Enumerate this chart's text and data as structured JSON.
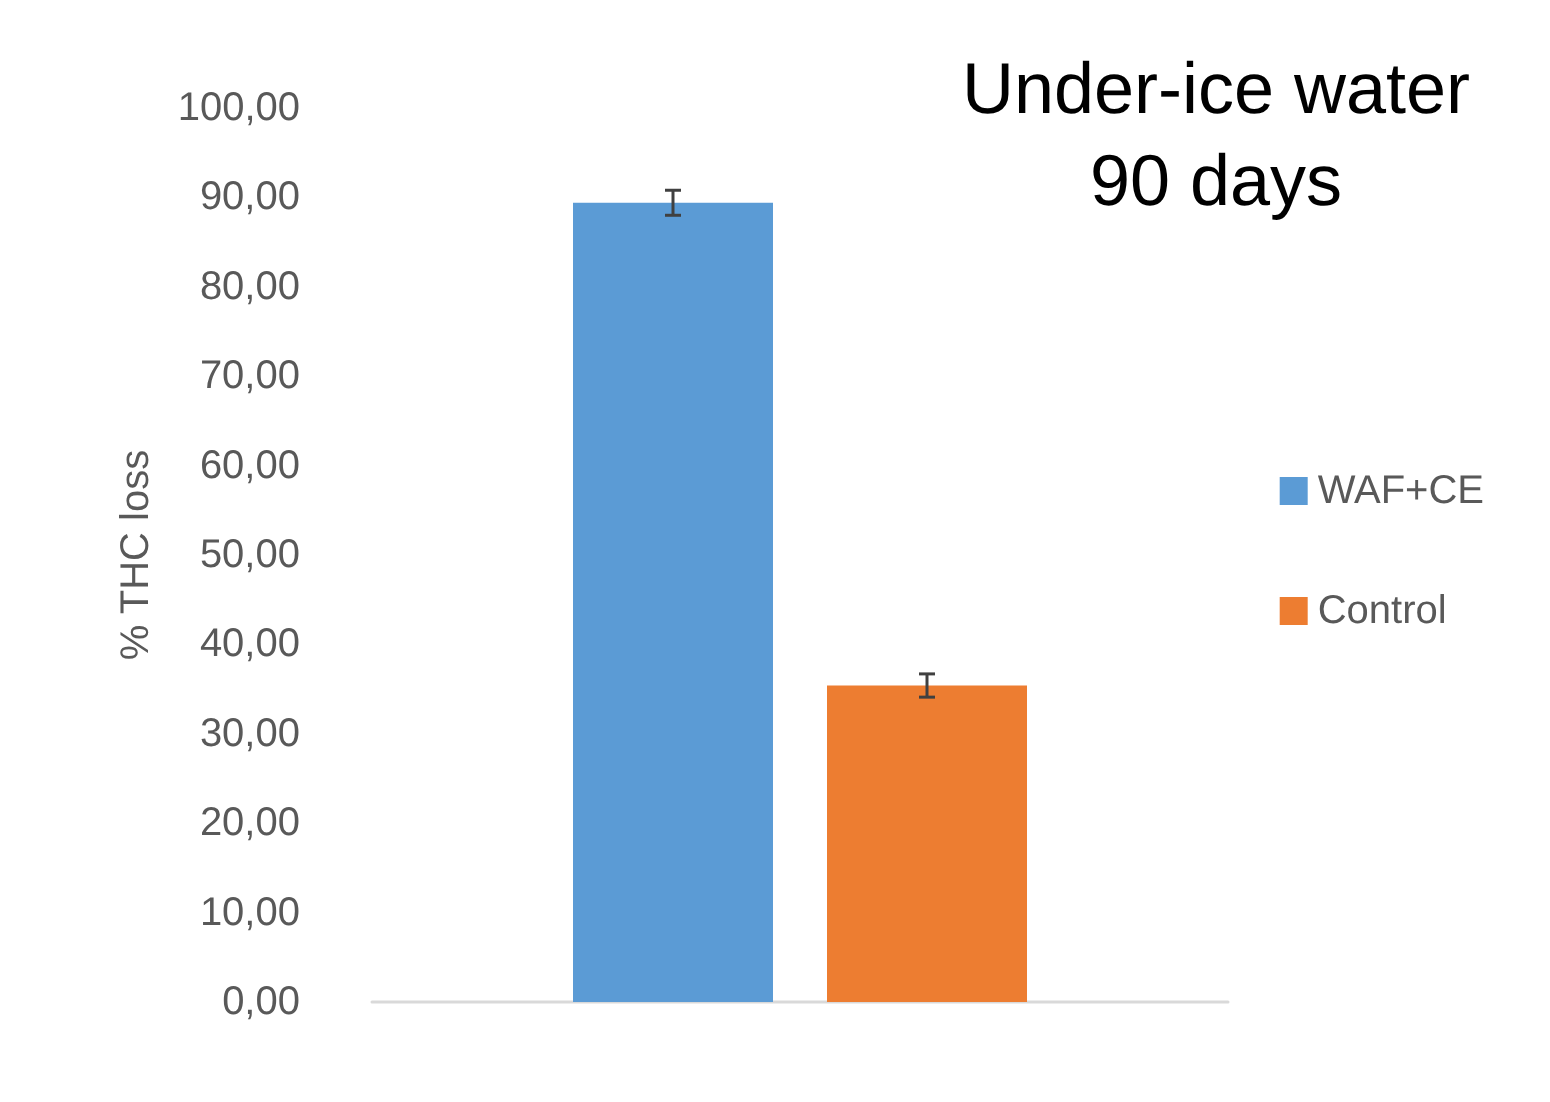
{
  "chart_data": {
    "type": "bar",
    "title": "Under-ice water\n90 days",
    "ylabel": "% THC loss",
    "categories": [
      null
    ],
    "series": [
      {
        "name": "WAF+CE",
        "color": "#5b9bd5",
        "values": [
          89.4
        ],
        "errors": [
          1.4
        ]
      },
      {
        "name": "Control",
        "color": "#ed7d31",
        "values": [
          35.4
        ],
        "errors": [
          1.3
        ]
      }
    ],
    "ylim": [
      0,
      100
    ],
    "yticks": [
      {
        "value": 0,
        "label": "0,00"
      },
      {
        "value": 10,
        "label": "10,00"
      },
      {
        "value": 20,
        "label": "20,00"
      },
      {
        "value": 30,
        "label": "30,00"
      },
      {
        "value": 40,
        "label": "40,00"
      },
      {
        "value": 50,
        "label": "50,00"
      },
      {
        "value": 60,
        "label": "60,00"
      },
      {
        "value": 70,
        "label": "70,00"
      },
      {
        "value": 80,
        "label": "80,00"
      },
      {
        "value": 90,
        "label": "90,00"
      },
      {
        "value": 100,
        "label": "100,00"
      }
    ],
    "grid": false,
    "legend": "right"
  }
}
